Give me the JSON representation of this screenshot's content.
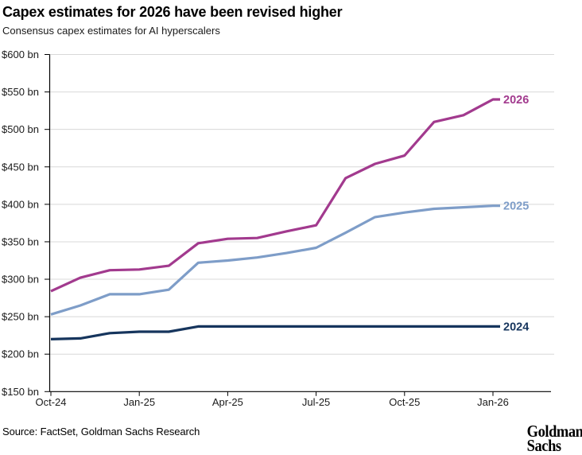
{
  "header": {
    "title": "Capex estimates for 2026 have been revised higher",
    "subtitle": "Consensus capex estimates for AI hyperscalers"
  },
  "chart_data": {
    "type": "line",
    "x": [
      "Oct-24",
      "Nov-24",
      "Dec-24",
      "Jan-25",
      "Feb-25",
      "Mar-25",
      "Apr-25",
      "May-25",
      "Jun-25",
      "Jul-25",
      "Aug-25",
      "Sep-25",
      "Oct-25",
      "Nov-25",
      "Dec-25",
      "Jan-26"
    ],
    "x_tick_indices": [
      0,
      3,
      6,
      9,
      12,
      15
    ],
    "x_tick_labels": [
      "Oct-24",
      "Jan-25",
      "Apr-25",
      "Jul-25",
      "Oct-25",
      "Jan-26"
    ],
    "ylim": [
      150,
      600
    ],
    "y_tick_step": 50,
    "y_tick_labels": [
      "$600 bn",
      "$550 bn",
      "$500 bn",
      "$450 bn",
      "$400 bn",
      "$350 bn",
      "$300 bn",
      "$250 bn",
      "$200 bn",
      "$150 bn"
    ],
    "grid": "horizontal-only",
    "legend_position": "line-end-labels",
    "units": "USD billions",
    "series": [
      {
        "name": "2026",
        "color": "#a23a8e",
        "values": [
          284,
          302,
          312,
          313,
          318,
          348,
          354,
          355,
          364,
          372,
          435,
          454,
          465,
          510,
          519,
          540
        ]
      },
      {
        "name": "2025",
        "color": "#7e9dc8",
        "values": [
          253,
          265,
          280,
          280,
          286,
          322,
          325,
          329,
          335,
          342,
          362,
          383,
          389,
          394,
          396,
          398
        ]
      },
      {
        "name": "2024",
        "color": "#16355d",
        "values": [
          220,
          221,
          228,
          230,
          230,
          237,
          237,
          237,
          237,
          237,
          237,
          237,
          237,
          237,
          237,
          237
        ]
      }
    ]
  },
  "footer": {
    "source": "Source: FactSet, Goldman Sachs Research",
    "logo_line1": "Goldman",
    "logo_line2": "Sachs"
  },
  "colors": {
    "gridline": "#d8d8d8",
    "axis": "#000000",
    "tick_text": "#1a1a1a"
  }
}
